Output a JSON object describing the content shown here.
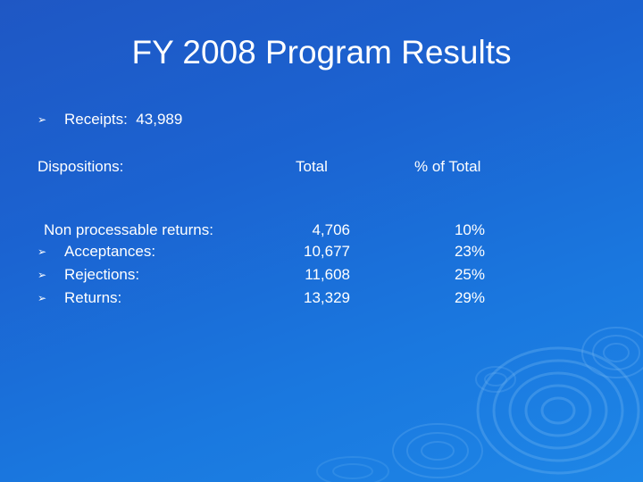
{
  "slide": {
    "title": "FY 2008 Program Results",
    "receipts": {
      "bullet_icon": "arrow-bullet-icon",
      "text": "Receipts:  43,989"
    },
    "header": {
      "label": "Dispositions:",
      "total": "Total",
      "percent": "% of Total"
    },
    "rows": [
      {
        "label": "Non processable returns:",
        "total": "4,706",
        "percent": "10%",
        "bullet": false
      },
      {
        "label": "Acceptances:",
        "total": "10,677",
        "percent": "23%",
        "bullet": true
      },
      {
        "label": "Rejections:",
        "total": "11,608",
        "percent": "25%",
        "bullet": true
      },
      {
        "label": "Returns:",
        "total": "13,329",
        "percent": "29%",
        "bullet": true
      }
    ],
    "colors": {
      "background": "#1b63d1",
      "text": "#ffffff"
    }
  }
}
